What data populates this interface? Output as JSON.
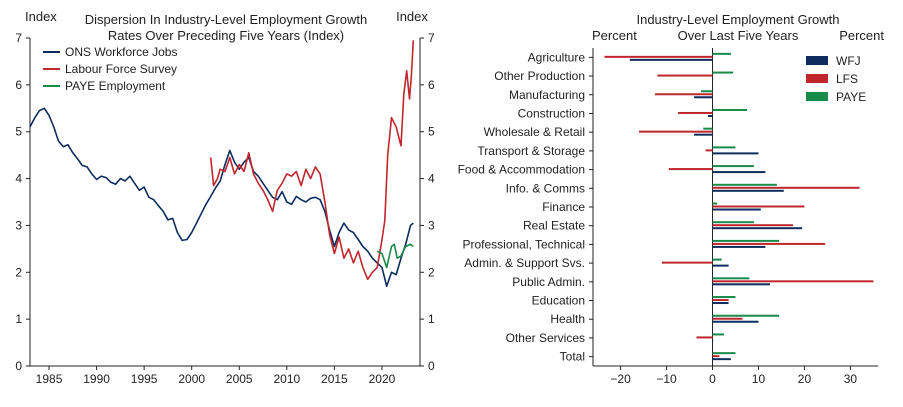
{
  "colors": {
    "wfj": "#0d2d5e",
    "lfs": "#c0262c",
    "paye": "#1a8a4a",
    "axis": "#222222"
  },
  "chart_data": [
    {
      "type": "line",
      "title": "Dispersion In Industry-Level Employment Growth",
      "subtitle": "Rates Over Preceding Five Years (Index)",
      "ylabel_left": "Index",
      "ylabel_right": "Index",
      "xlim": [
        1983,
        2024
      ],
      "ylim": [
        0,
        7
      ],
      "xticks": [
        1985,
        1990,
        1995,
        2000,
        2005,
        2010,
        2015,
        2020
      ],
      "yticks": [
        0,
        1,
        2,
        3,
        4,
        5,
        6,
        7
      ],
      "legend_position": "top-left",
      "series": [
        {
          "name": "ONS Workforce Jobs",
          "color_key": "wfj",
          "points": [
            [
              1983,
              5.1
            ],
            [
              1983.5,
              5.3
            ],
            [
              1984,
              5.45
            ],
            [
              1984.5,
              5.5
            ],
            [
              1985,
              5.35
            ],
            [
              1985.5,
              5.1
            ],
            [
              1986,
              4.8
            ],
            [
              1986.5,
              4.68
            ],
            [
              1987,
              4.72
            ],
            [
              1987.5,
              4.55
            ],
            [
              1988,
              4.42
            ],
            [
              1988.5,
              4.28
            ],
            [
              1989,
              4.25
            ],
            [
              1989.5,
              4.1
            ],
            [
              1990,
              3.98
            ],
            [
              1990.5,
              4.05
            ],
            [
              1991,
              4.02
            ],
            [
              1991.5,
              3.92
            ],
            [
              1992,
              3.88
            ],
            [
              1992.5,
              4.0
            ],
            [
              1993,
              3.95
            ],
            [
              1993.5,
              4.05
            ],
            [
              1994,
              3.9
            ],
            [
              1994.5,
              3.75
            ],
            [
              1995,
              3.82
            ],
            [
              1995.5,
              3.6
            ],
            [
              1996,
              3.55
            ],
            [
              1996.5,
              3.42
            ],
            [
              1997,
              3.3
            ],
            [
              1997.5,
              3.12
            ],
            [
              1998,
              3.15
            ],
            [
              1998.5,
              2.85
            ],
            [
              1999,
              2.68
            ],
            [
              1999.5,
              2.7
            ],
            [
              2000,
              2.85
            ],
            [
              2000.5,
              3.05
            ],
            [
              2001,
              3.25
            ],
            [
              2001.5,
              3.45
            ],
            [
              2002,
              3.62
            ],
            [
              2002.5,
              3.8
            ],
            [
              2003,
              3.95
            ],
            [
              2003.5,
              4.3
            ],
            [
              2004,
              4.6
            ],
            [
              2004.5,
              4.35
            ],
            [
              2005,
              4.2
            ],
            [
              2005.5,
              4.35
            ],
            [
              2006,
              4.45
            ],
            [
              2006.5,
              4.15
            ],
            [
              2007,
              4.05
            ],
            [
              2007.5,
              3.9
            ],
            [
              2008,
              3.75
            ],
            [
              2008.5,
              3.6
            ],
            [
              2009,
              3.55
            ],
            [
              2009.5,
              3.72
            ],
            [
              2010,
              3.5
            ],
            [
              2010.5,
              3.45
            ],
            [
              2011,
              3.62
            ],
            [
              2011.5,
              3.55
            ],
            [
              2012,
              3.5
            ],
            [
              2012.5,
              3.58
            ],
            [
              2013,
              3.6
            ],
            [
              2013.5,
              3.55
            ],
            [
              2014,
              3.3
            ],
            [
              2014.5,
              2.9
            ],
            [
              2015,
              2.55
            ],
            [
              2015.5,
              2.85
            ],
            [
              2016,
              3.05
            ],
            [
              2016.5,
              2.9
            ],
            [
              2017,
              2.85
            ],
            [
              2017.5,
              2.7
            ],
            [
              2018,
              2.55
            ],
            [
              2018.5,
              2.45
            ],
            [
              2019,
              2.3
            ],
            [
              2019.5,
              2.2
            ],
            [
              2020,
              2.1
            ],
            [
              2020.5,
              1.7
            ],
            [
              2021,
              2.0
            ],
            [
              2021.5,
              1.95
            ],
            [
              2022,
              2.3
            ],
            [
              2022.5,
              2.6
            ],
            [
              2023,
              3.0
            ],
            [
              2023.3,
              3.05
            ]
          ]
        },
        {
          "name": "Labour Force Survey",
          "color_key": "lfs",
          "points": [
            [
              2002,
              4.45
            ],
            [
              2002.3,
              3.85
            ],
            [
              2002.7,
              4.0
            ],
            [
              2003,
              4.2
            ],
            [
              2003.5,
              4.15
            ],
            [
              2004,
              4.45
            ],
            [
              2004.5,
              4.1
            ],
            [
              2005,
              4.3
            ],
            [
              2005.5,
              4.15
            ],
            [
              2006,
              4.55
            ],
            [
              2006.5,
              4.1
            ],
            [
              2007,
              3.9
            ],
            [
              2007.5,
              3.75
            ],
            [
              2008,
              3.55
            ],
            [
              2008.5,
              3.3
            ],
            [
              2009,
              3.75
            ],
            [
              2009.5,
              3.9
            ],
            [
              2010,
              4.1
            ],
            [
              2010.5,
              4.05
            ],
            [
              2011,
              4.15
            ],
            [
              2011.5,
              3.85
            ],
            [
              2012,
              4.2
            ],
            [
              2012.5,
              4.0
            ],
            [
              2013,
              4.25
            ],
            [
              2013.5,
              4.1
            ],
            [
              2014,
              3.5
            ],
            [
              2014.5,
              2.8
            ],
            [
              2015,
              2.4
            ],
            [
              2015.5,
              2.75
            ],
            [
              2016,
              2.3
            ],
            [
              2016.5,
              2.5
            ],
            [
              2017,
              2.2
            ],
            [
              2017.5,
              2.45
            ],
            [
              2018,
              2.1
            ],
            [
              2018.5,
              1.85
            ],
            [
              2019,
              2.0
            ],
            [
              2019.5,
              2.1
            ],
            [
              2019.8,
              2.45
            ],
            [
              2020,
              2.7
            ],
            [
              2020.3,
              3.1
            ],
            [
              2020.6,
              4.5
            ],
            [
              2021,
              5.3
            ],
            [
              2021.5,
              5.1
            ],
            [
              2022,
              4.7
            ],
            [
              2022.3,
              5.8
            ],
            [
              2022.6,
              6.3
            ],
            [
              2022.9,
              5.7
            ],
            [
              2023.1,
              6.2
            ],
            [
              2023.3,
              6.95
            ]
          ]
        },
        {
          "name": "PAYE Employment",
          "color_key": "paye",
          "points": [
            [
              2019.5,
              2.45
            ],
            [
              2020,
              2.4
            ],
            [
              2020.5,
              2.1
            ],
            [
              2021,
              2.55
            ],
            [
              2021.3,
              2.6
            ],
            [
              2021.6,
              2.3
            ],
            [
              2022,
              2.35
            ],
            [
              2022.5,
              2.55
            ],
            [
              2023,
              2.6
            ],
            [
              2023.3,
              2.55
            ]
          ]
        }
      ]
    },
    {
      "type": "bar",
      "orientation": "horizontal",
      "title_line1": "Industry-Level Employment Growth",
      "title_line2": "Over Last Five Years",
      "xlabel_left": "Percent",
      "xlabel_right": "Percent",
      "xlim": [
        -26,
        36
      ],
      "xticks": [
        -20,
        -10,
        0,
        10,
        20,
        30
      ],
      "legend_position": "top-right",
      "categories": [
        "Agriculture",
        "Other Production",
        "Manufacturing",
        "Construction",
        "Wholesale & Retail",
        "Transport & Storage",
        "Food & Accommodation",
        "Info. & Comms",
        "Finance",
        "Real Estate",
        "Professional, Technical",
        "Admin. & Support Svs.",
        "Public Admin.",
        "Education",
        "Health",
        "Other Services",
        "Total"
      ],
      "series": [
        {
          "name": "WFJ",
          "color_key": "wfj",
          "values": [
            -18,
            0,
            -4,
            -1,
            -4,
            10,
            11.5,
            15.5,
            10.5,
            19.5,
            11.5,
            3.5,
            12.5,
            3.5,
            10,
            0,
            4
          ]
        },
        {
          "name": "LFS",
          "color_key": "lfs",
          "values": [
            -23.5,
            -12,
            -12.5,
            -7.5,
            -16,
            -1.5,
            -9.5,
            32,
            20,
            17.5,
            24.5,
            -11,
            35,
            3.5,
            6.5,
            -3.5,
            1.5
          ]
        },
        {
          "name": "PAYE",
          "color_key": "paye",
          "values": [
            4,
            4.5,
            -2.5,
            7.5,
            -2,
            5,
            9,
            14,
            1,
            9,
            14.5,
            2,
            8,
            5,
            14.5,
            2.5,
            5
          ]
        }
      ]
    }
  ]
}
